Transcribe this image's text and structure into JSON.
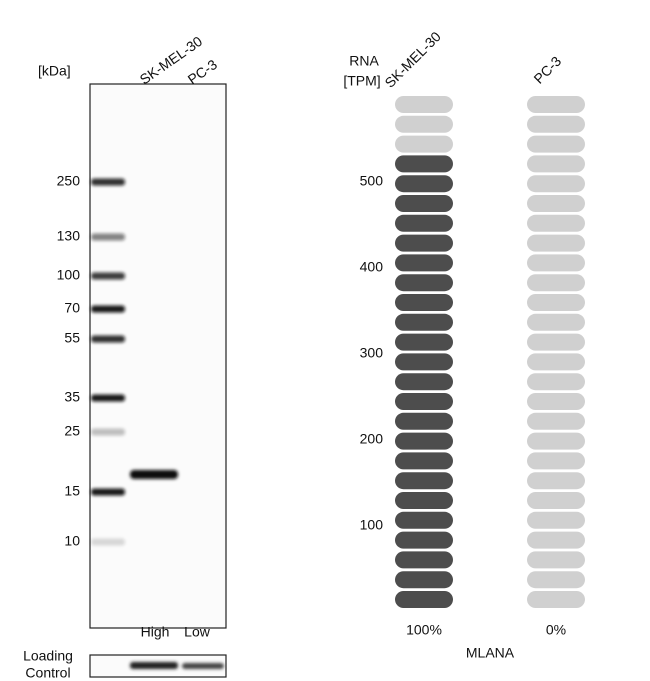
{
  "blot": {
    "unit_label": "[kDa]",
    "lanes": [
      "SK-MEL-30",
      "PC-3"
    ],
    "markers": [
      "250",
      "130",
      "100",
      "70",
      "55",
      "35",
      "25",
      "15",
      "10"
    ],
    "lane_levels": [
      "High",
      "Low"
    ],
    "loading_control": [
      "Loading",
      "Control"
    ]
  },
  "rna": {
    "axis_title": [
      "RNA",
      "[TPM]"
    ],
    "samples": [
      "SK-MEL-30",
      "PC-3"
    ],
    "ticks": [
      "500",
      "400",
      "300",
      "200",
      "100"
    ],
    "percentages": [
      "100%",
      "0%"
    ],
    "gene": "MLANA"
  }
}
